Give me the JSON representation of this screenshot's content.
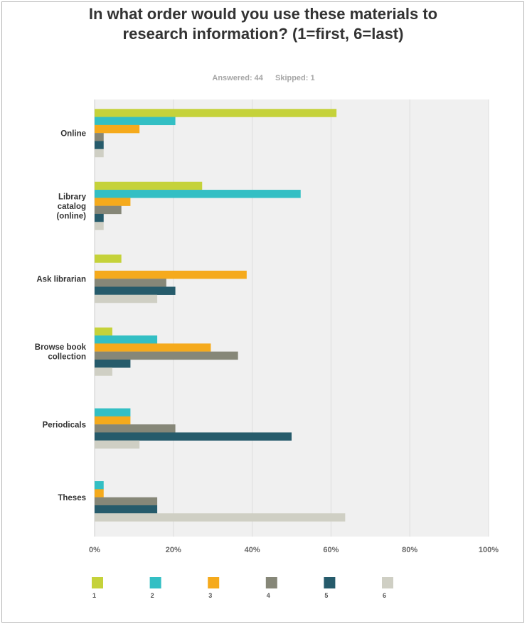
{
  "header": {
    "title": "In what order would you use these materials to research information? (1=first, 6=last)",
    "answered": "Answered: 44",
    "skipped": "Skipped: 1"
  },
  "chart_data": {
    "type": "bar",
    "orientation": "horizontal",
    "title": "In what order would you use these materials to research information? (1=first, 6=last)",
    "categories": [
      "Online",
      "Library catalog (online)",
      "Ask librarian",
      "Browse book collection",
      "Periodicals",
      "Theses"
    ],
    "category_lines": [
      [
        "Online"
      ],
      [
        "Library",
        "catalog",
        "(online)"
      ],
      [
        "Ask librarian"
      ],
      [
        "Browse book",
        "collection"
      ],
      [
        "Periodicals"
      ],
      [
        "Theses"
      ]
    ],
    "series": [
      {
        "name": "1",
        "color": "#c5d23a",
        "values": [
          61.4,
          27.3,
          6.8,
          4.5,
          0,
          0
        ]
      },
      {
        "name": "2",
        "color": "#33bfc4",
        "values": [
          20.5,
          52.3,
          0,
          15.9,
          9.1,
          2.3
        ]
      },
      {
        "name": "3",
        "color": "#f5aa1c",
        "values": [
          11.4,
          9.1,
          38.6,
          29.5,
          9.1,
          2.3
        ]
      },
      {
        "name": "4",
        "color": "#868778",
        "values": [
          2.3,
          6.8,
          18.2,
          36.4,
          20.5,
          15.9
        ]
      },
      {
        "name": "5",
        "color": "#265b6b",
        "values": [
          2.3,
          2.3,
          20.5,
          9.1,
          50.0,
          15.9
        ]
      },
      {
        "name": "6",
        "color": "#cfcfc4",
        "values": [
          2.3,
          2.3,
          15.9,
          4.5,
          11.4,
          63.6
        ]
      }
    ],
    "x_ticks": [
      "0%",
      "20%",
      "40%",
      "60%",
      "80%",
      "100%"
    ],
    "xlim": [
      0,
      100
    ],
    "grid": true,
    "plot_background": "#f0f0f0",
    "legend_position": "bottom"
  }
}
